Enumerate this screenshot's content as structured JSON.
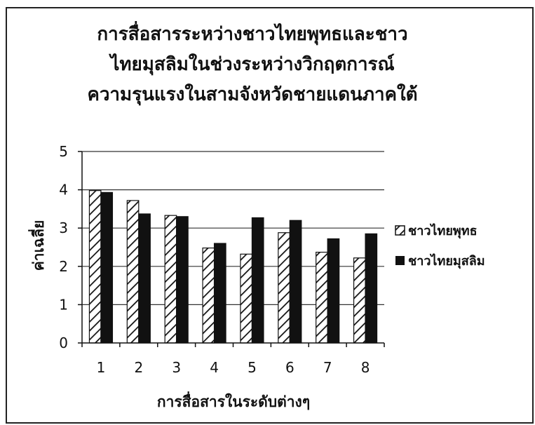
{
  "chart_data": {
    "type": "bar",
    "title_lines": [
      "การสื่อสารระหว่างชาวไทยพุทธและชาว",
      "ไทยมุสลิมในช่วงระหว่างวิกฤตการณ์",
      "ความรุนแรงในสามจังหวัดชายแดนภาคใต้"
    ],
    "xlabel": "การสื่อสารในระดับต่างๆ",
    "ylabel": "ค่าเฉลี่ย",
    "categories": [
      "1",
      "2",
      "3",
      "4",
      "5",
      "6",
      "7",
      "8"
    ],
    "ylim": [
      0,
      5
    ],
    "yticks": [
      0,
      1,
      2,
      3,
      4,
      5
    ],
    "grid": true,
    "legend_position": "right",
    "series": [
      {
        "name": "ชาวไทยพุทธ",
        "pattern": "diagonal-hatch",
        "color": "#111111",
        "values": [
          3.98,
          3.72,
          3.33,
          2.48,
          2.32,
          2.88,
          2.37,
          2.22
        ]
      },
      {
        "name": "ชาวไทยมุสลิม",
        "pattern": "solid",
        "color": "#111111",
        "values": [
          3.93,
          3.37,
          3.3,
          2.6,
          3.27,
          3.2,
          2.72,
          2.85
        ]
      }
    ]
  }
}
